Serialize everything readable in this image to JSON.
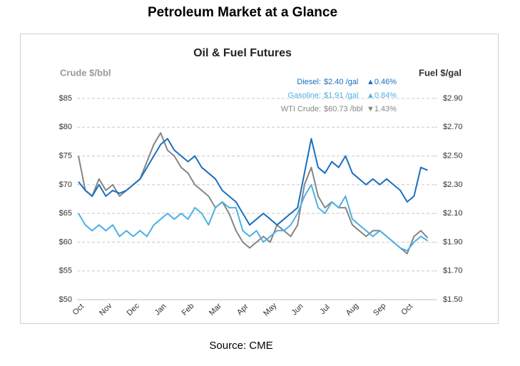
{
  "header": "Petroleum Market at a Glance",
  "source": "Source: CME",
  "chart_data": {
    "type": "line",
    "title": "Oil & Fuel Futures",
    "y_label": "Crude $/bbl",
    "y2_label": "Fuel $/gal",
    "categories": [
      "Oct",
      null,
      null,
      null,
      "Nov",
      null,
      null,
      null,
      "Dec",
      null,
      null,
      null,
      "Jan",
      null,
      null,
      null,
      "Feb",
      null,
      null,
      null,
      "Mar",
      null,
      null,
      null,
      "Apr",
      null,
      null,
      null,
      "May",
      null,
      null,
      null,
      "Jun",
      null,
      null,
      null,
      "Jul",
      null,
      null,
      null,
      "Aug",
      null,
      null,
      null,
      "Sep",
      null,
      null,
      null,
      "Oct",
      null,
      null,
      null
    ],
    "ylim": [
      50,
      85
    ],
    "yticks": [
      {
        "value": 50,
        "label": "$50"
      },
      {
        "value": 55,
        "label": "$55"
      },
      {
        "value": 60,
        "label": "$60"
      },
      {
        "value": 65,
        "label": "$65"
      },
      {
        "value": 70,
        "label": "$70"
      },
      {
        "value": 75,
        "label": "$75"
      },
      {
        "value": 80,
        "label": "$80"
      },
      {
        "value": 85,
        "label": "$85"
      }
    ],
    "y2lim": [
      1.5,
      2.9
    ],
    "y2ticks": [
      {
        "value": 1.5,
        "label": "$1.50"
      },
      {
        "value": 1.7,
        "label": "$1.70"
      },
      {
        "value": 1.9,
        "label": "$1.90"
      },
      {
        "value": 2.1,
        "label": "$2.10"
      },
      {
        "value": 2.3,
        "label": "$2.30"
      },
      {
        "value": 2.5,
        "label": "$2.50"
      },
      {
        "value": 2.7,
        "label": "$2.70"
      },
      {
        "value": 2.9,
        "label": "$2.90"
      }
    ],
    "grid": true,
    "series": [
      {
        "name": "Diesel:",
        "last_label": "$2.40 /gal",
        "change": "▲0.46%",
        "color": "#1a6fbf",
        "axis": "y2",
        "values": [
          2.32,
          2.26,
          2.22,
          2.3,
          2.22,
          2.26,
          2.24,
          2.26,
          2.3,
          2.34,
          2.42,
          2.5,
          2.58,
          2.62,
          2.54,
          2.5,
          2.46,
          2.5,
          2.42,
          2.38,
          2.34,
          2.26,
          2.22,
          2.18,
          2.1,
          2.02,
          2.06,
          2.1,
          2.06,
          2.02,
          2.06,
          2.1,
          2.14,
          2.38,
          2.62,
          2.42,
          2.38,
          2.46,
          2.42,
          2.5,
          2.38,
          2.34,
          2.3,
          2.34,
          2.3,
          2.34,
          2.3,
          2.26,
          2.18,
          2.22,
          2.42,
          2.4
        ]
      },
      {
        "name": "Gasoline:",
        "last_label": "$1.91 /gal",
        "change": "▲0.84%",
        "color": "#4db0e3",
        "axis": "y2",
        "values": [
          2.1,
          2.02,
          1.98,
          2.02,
          1.98,
          2.02,
          1.94,
          1.98,
          1.94,
          1.98,
          1.94,
          2.02,
          2.06,
          2.1,
          2.06,
          2.1,
          2.06,
          2.14,
          2.1,
          2.02,
          2.14,
          2.18,
          2.14,
          2.14,
          1.98,
          1.94,
          1.98,
          1.9,
          1.94,
          1.98,
          1.98,
          2.02,
          2.1,
          2.22,
          2.3,
          2.14,
          2.1,
          2.18,
          2.14,
          2.22,
          2.06,
          2.02,
          1.98,
          1.94,
          1.98,
          1.94,
          1.9,
          1.86,
          1.84,
          1.9,
          1.94,
          1.91
        ]
      },
      {
        "name": "WTI Crude:",
        "last_label": "$60.73 /bbl",
        "change": "▼1.43%",
        "color": "#858585",
        "values": [
          75,
          69,
          68,
          71,
          69,
          70,
          68,
          69,
          70,
          71,
          74,
          77,
          79,
          76,
          75,
          73,
          72,
          70,
          69,
          68,
          66,
          67,
          65,
          62,
          60,
          59,
          60,
          61,
          60,
          63,
          62,
          61,
          63,
          70,
          73,
          68,
          66,
          67,
          66,
          66,
          63,
          62,
          61,
          62,
          62,
          61,
          60,
          59,
          58,
          61,
          62,
          60.73
        ]
      }
    ]
  }
}
